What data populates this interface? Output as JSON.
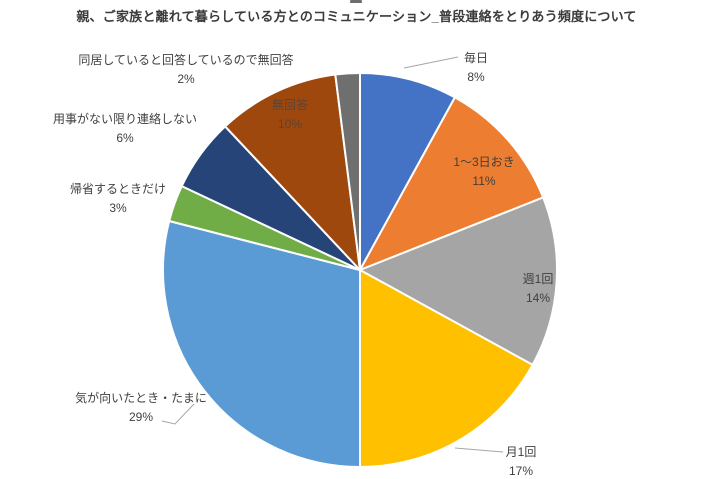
{
  "chart_data": {
    "type": "pie",
    "title": "親、ご家族と離れて暮らしている方とのコミュニケーション_普段連絡をとりあう頻度について",
    "direction": "clockwise",
    "start_angle_deg": 0,
    "legend_position": "none",
    "grid": false,
    "background_color": "#FFFFFF",
    "slice_border_color": "#FFFFFF",
    "label_text_color": "#3F3F3F",
    "leader_line_color": "#A6A6A6",
    "slices": [
      {
        "id": "every-day",
        "label": "毎日",
        "value": 8,
        "pct_label": "8%",
        "color": "#4472C4",
        "label_placement": "outside-with-leader"
      },
      {
        "id": "every-1-3-days",
        "label": "1〜3日おき",
        "value": 11,
        "pct_label": "11%",
        "color": "#ED7D31",
        "label_placement": "inside"
      },
      {
        "id": "once-a-week",
        "label": "週1回",
        "value": 14,
        "pct_label": "14%",
        "color": "#A5A5A5",
        "label_placement": "inside"
      },
      {
        "id": "once-a-month",
        "label": "月1回",
        "value": 17,
        "pct_label": "17%",
        "color": "#FFC000",
        "label_placement": "outside-with-leader"
      },
      {
        "id": "occasionally",
        "label": "気が向いたとき・たまに",
        "value": 29,
        "pct_label": "29%",
        "color": "#5B9BD5",
        "label_placement": "outside-with-leader"
      },
      {
        "id": "only-when-visiting-home",
        "label": "帰省するときだけ",
        "value": 3,
        "pct_label": "3%",
        "color": "#70AD47",
        "label_placement": "outside"
      },
      {
        "id": "only-when-necessary",
        "label": "用事がない限り連絡しない",
        "value": 6,
        "pct_label": "6%",
        "color": "#264478",
        "label_placement": "outside"
      },
      {
        "id": "no-answer",
        "label": "無回答",
        "value": 10,
        "pct_label": "10%",
        "color": "#9E480E",
        "label_placement": "inside",
        "label_color": "#5E4431"
      },
      {
        "id": "no-answer-living-together",
        "label": "同居していると回答しているので無回答",
        "value": 2,
        "pct_label": "2%",
        "color": "#6F6F6F",
        "label_placement": "outside"
      }
    ]
  }
}
